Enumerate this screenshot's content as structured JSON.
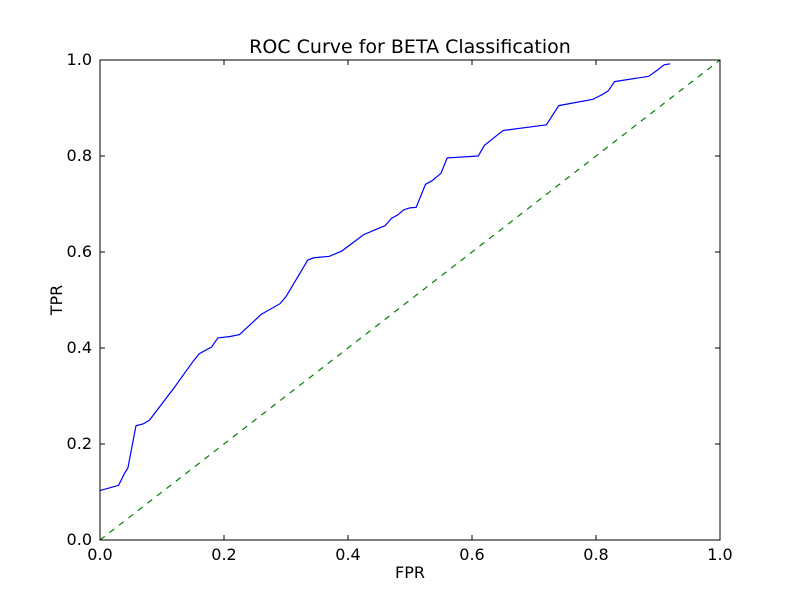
{
  "chart_data": {
    "type": "line",
    "title": "ROC Curve for BETA Classification",
    "xlabel": "FPR",
    "ylabel": "TPR",
    "xlim": [
      0.0,
      1.0
    ],
    "ylim": [
      0.0,
      1.0
    ],
    "xticks": [
      "0.0",
      "0.2",
      "0.4",
      "0.6",
      "0.8",
      "1.0"
    ],
    "yticks": [
      "0.0",
      "0.2",
      "0.4",
      "0.6",
      "0.8",
      "1.0"
    ],
    "grid": false,
    "legend": "none",
    "series": [
      {
        "style": "solid",
        "color": "#0000ff",
        "x": [
          0.0,
          0.03,
          0.04,
          0.045,
          0.058,
          0.07,
          0.08,
          0.12,
          0.15,
          0.16,
          0.18,
          0.19,
          0.21,
          0.225,
          0.26,
          0.29,
          0.3,
          0.335,
          0.345,
          0.37,
          0.39,
          0.425,
          0.46,
          0.47,
          0.48,
          0.49,
          0.5,
          0.51,
          0.525,
          0.535,
          0.55,
          0.56,
          0.61,
          0.62,
          0.65,
          0.72,
          0.74,
          0.795,
          0.81,
          0.82,
          0.83,
          0.885,
          0.9,
          0.91,
          0.92
        ],
        "y": [
          0.103,
          0.114,
          0.14,
          0.15,
          0.238,
          0.242,
          0.25,
          0.318,
          0.372,
          0.388,
          0.402,
          0.421,
          0.424,
          0.428,
          0.47,
          0.492,
          0.507,
          0.583,
          0.588,
          0.591,
          0.602,
          0.636,
          0.655,
          0.67,
          0.677,
          0.688,
          0.692,
          0.693,
          0.741,
          0.748,
          0.764,
          0.796,
          0.8,
          0.822,
          0.853,
          0.865,
          0.905,
          0.918,
          0.928,
          0.936,
          0.955,
          0.966,
          0.98,
          0.99,
          0.992
        ]
      },
      {
        "style": "dashed",
        "color": "#008000",
        "x": [
          0.0,
          1.0
        ],
        "y": [
          0.0,
          1.0
        ]
      }
    ]
  }
}
